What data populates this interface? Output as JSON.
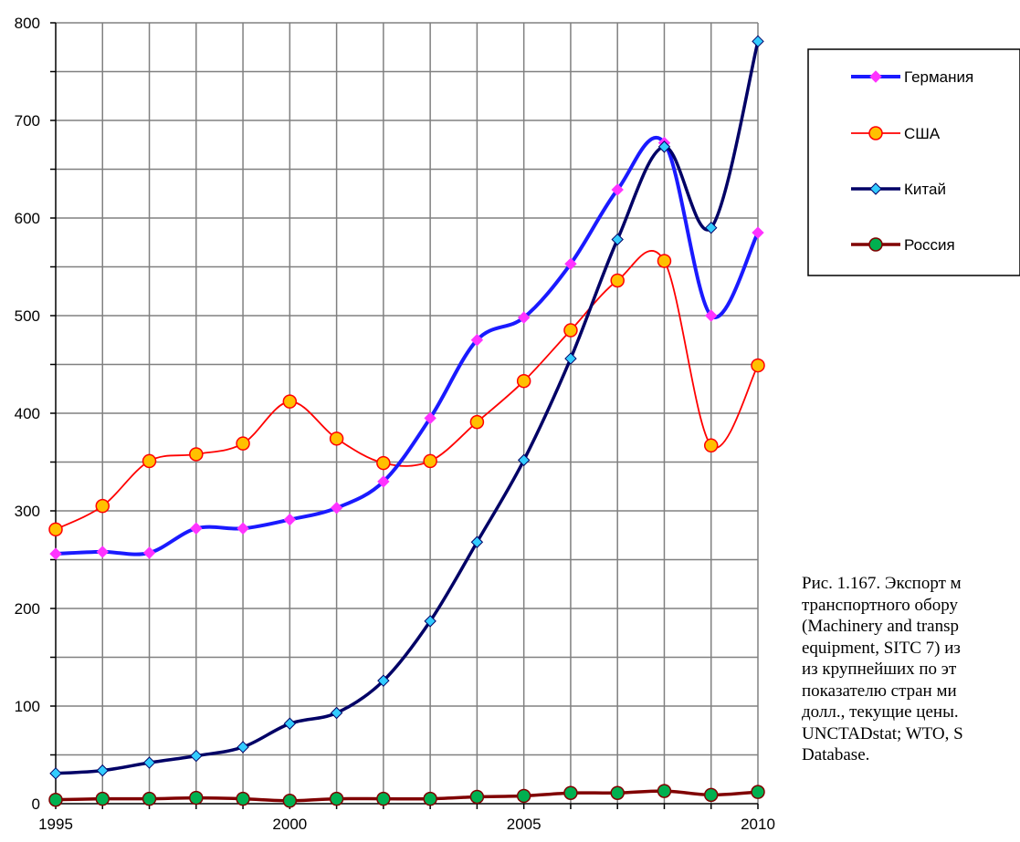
{
  "chart_data": {
    "type": "line",
    "title": "",
    "xlabel": "",
    "ylabel": "",
    "x": [
      1995,
      1996,
      1997,
      1998,
      1999,
      2000,
      2001,
      2002,
      2003,
      2004,
      2005,
      2006,
      2007,
      2008,
      2009,
      2010
    ],
    "xlim": [
      1995,
      2010
    ],
    "ylim": [
      0,
      800
    ],
    "x_ticks": [
      "1995",
      "2000",
      "2005",
      "2010"
    ],
    "y_ticks": [
      "0",
      "100",
      "200",
      "300",
      "400",
      "500",
      "600",
      "700",
      "800"
    ],
    "grid": true,
    "legend_position": "top-right",
    "series": [
      {
        "name": "Германия",
        "color": "#1a1aff",
        "marker": "diamond",
        "marker_color": "#ff33ff",
        "values": [
          256,
          258,
          257,
          282,
          282,
          291,
          303,
          330,
          395,
          475,
          498,
          553,
          629,
          677,
          500,
          585
        ]
      },
      {
        "name": "США",
        "color": "#ff0000",
        "marker": "circle",
        "marker_color": "#ffc000",
        "values": [
          281,
          305,
          351,
          358,
          369,
          412,
          374,
          349,
          351,
          391,
          433,
          485,
          536,
          556,
          367,
          449
        ]
      },
      {
        "name": "Китай",
        "color": "#000066",
        "marker": "diamond",
        "marker_color": "#33ccff",
        "values": [
          31,
          34,
          42,
          49,
          58,
          82,
          93,
          126,
          187,
          268,
          352,
          456,
          578,
          673,
          590,
          781
        ]
      },
      {
        "name": "Россия",
        "color": "#800000",
        "marker": "circle",
        "marker_color": "#00b050",
        "values": [
          4,
          5,
          5,
          6,
          5,
          3,
          5,
          5,
          5,
          7,
          8,
          11,
          11,
          13,
          9,
          12
        ]
      }
    ]
  },
  "caption": [
    "Рис. 1.167. Экспорт м",
    "транспортного обору",
    "(Machinery and transp",
    "equipment, SITC 7) из",
    "из крупнейших по эт",
    "показателю стран ми",
    "долл., текущие цены.",
    "UNCTADstat; WTO, S",
    "Database."
  ]
}
